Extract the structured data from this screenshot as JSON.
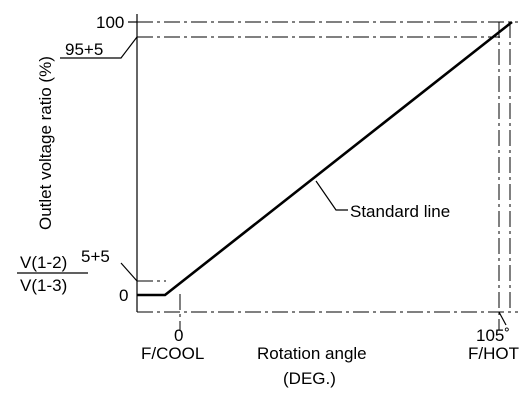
{
  "diagram": {
    "y_axis_title": "Outlet voltage ratio (%)",
    "x_axis_title_line1": "Rotation angle",
    "x_axis_title_line2": "(DEG.)",
    "y_labels": {
      "top": "100",
      "upper": "95+5",
      "lower_fraction_numerator": "V(1-2)",
      "lower_fraction_denominator": "V(1-3)",
      "lower_value": "5+5",
      "zero": "0"
    },
    "x_labels": {
      "start_angle": "0",
      "start_name": "F/COOL",
      "end_angle": "105˚",
      "end_name": "F/HOT"
    },
    "line_label": "Standard line"
  }
}
